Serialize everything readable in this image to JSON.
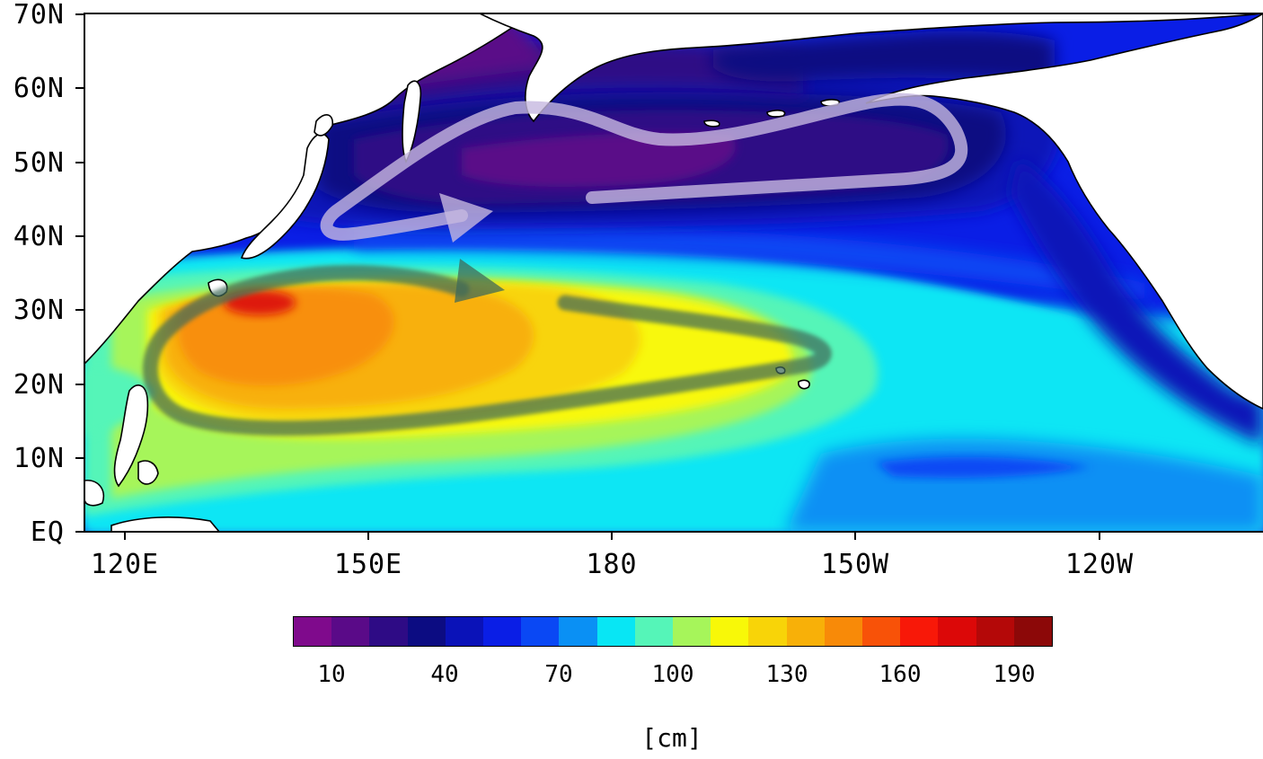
{
  "map": {
    "lat_labels": [
      "70N",
      "60N",
      "50N",
      "40N",
      "30N",
      "20N",
      "10N",
      "EQ"
    ],
    "lon_labels": [
      "120E",
      "150E",
      "180",
      "150W",
      "120W"
    ],
    "land_color": "#ffffff",
    "coastline_color": "#000000",
    "features": [
      "subpolar-gyre-arrow",
      "subtropical-gyre-arrow"
    ]
  },
  "colorbar": {
    "colors": [
      "#7f0a8c",
      "#5a0a88",
      "#2e0b85",
      "#0c0c82",
      "#0a12b8",
      "#0a1ee6",
      "#0a48f4",
      "#0a90f4",
      "#08e6f4",
      "#55f5b8",
      "#a6f55a",
      "#f8f808",
      "#f8d408",
      "#f8b008",
      "#f88a08",
      "#f85208",
      "#f81808",
      "#dc0808",
      "#b40808",
      "#8c0808"
    ],
    "tick_labels": [
      "10",
      "40",
      "70",
      "100",
      "130",
      "160",
      "190"
    ],
    "unit": "[cm]"
  }
}
